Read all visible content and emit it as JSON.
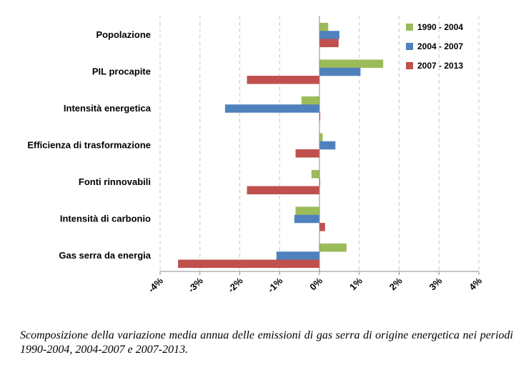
{
  "chart_data": {
    "type": "bar",
    "orientation": "horizontal",
    "categories": [
      "Popolazione",
      "PIL procapite",
      "Intensità energetica",
      "Efficienza di trasformazione",
      "Fonti rinnovabili",
      "Intensità di carbonio",
      "Gas serra da energia"
    ],
    "series": [
      {
        "name": "1990 - 2004",
        "color": "#9bbb59",
        "values": [
          0.22,
          1.6,
          -0.45,
          0.08,
          -0.2,
          -0.6,
          0.68
        ]
      },
      {
        "name": "2004 - 2007",
        "color": "#4f81bd",
        "values": [
          0.5,
          1.03,
          -2.37,
          0.4,
          0.0,
          -0.63,
          -1.08
        ]
      },
      {
        "name": "2007 - 2013",
        "color": "#c0504d",
        "values": [
          0.48,
          -1.82,
          0.02,
          -0.6,
          -1.82,
          0.14,
          -3.55
        ]
      }
    ],
    "xlim": [
      -4,
      4
    ],
    "xticks": [
      -4,
      -3,
      -2,
      -1,
      0,
      1,
      2,
      3,
      4
    ],
    "xtick_labels": [
      "-4%",
      "-3%",
      "-2%",
      "-1%",
      "0%",
      "1%",
      "2%",
      "3%",
      "4%"
    ],
    "grid": "vertical dashed",
    "legend_position": "top-right"
  },
  "caption": "Scomposizione della variazione media annua delle emissioni di gas serra di origine energetica nei periodi 1990-2004, 2004-2007 e 2007-2013."
}
